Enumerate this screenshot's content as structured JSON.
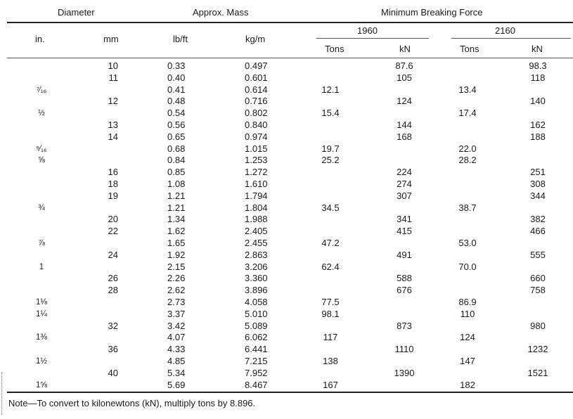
{
  "header": {
    "diameter": "Diameter",
    "mass": "Approx. Mass",
    "force": "Minimum Breaking Force",
    "in": "in.",
    "mm": "mm",
    "lbft": "lb/ft",
    "kgm": "kg/m",
    "y1960": "1960",
    "y2160": "2160",
    "tons1": "Tons",
    "kn1": "kN",
    "tons2": "Tons",
    "kn2": "kN"
  },
  "rows": [
    {
      "in": "",
      "mm": "10",
      "lb": "0.33",
      "kg": "0.497",
      "t60": "",
      "kn60": "87.6",
      "t21": "",
      "kn21": "98.3"
    },
    {
      "in": "",
      "mm": "11",
      "lb": "0.40",
      "kg": "0.601",
      "t60": "",
      "kn60": "105",
      "t21": "",
      "kn21": "118"
    },
    {
      "in": "⁷⁄₁₆",
      "mm": "",
      "lb": "0.41",
      "kg": "0.614",
      "t60": "12.1",
      "kn60": "",
      "t21": "13.4",
      "kn21": ""
    },
    {
      "in": "",
      "mm": "12",
      "lb": "0.48",
      "kg": "0.716",
      "t60": "",
      "kn60": "124",
      "t21": "",
      "kn21": "140"
    },
    {
      "in": "½",
      "mm": "",
      "lb": "0.54",
      "kg": "0.802",
      "t60": "15.4",
      "kn60": "",
      "t21": "17.4",
      "kn21": ""
    },
    {
      "in": "",
      "mm": "13",
      "lb": "0.56",
      "kg": "0.840",
      "t60": "",
      "kn60": "144",
      "t21": "",
      "kn21": "162"
    },
    {
      "in": "",
      "mm": "14",
      "lb": "0.65",
      "kg": "0.974",
      "t60": "",
      "kn60": "168",
      "t21": "",
      "kn21": "188"
    },
    {
      "in": "⁹⁄₁₆",
      "mm": "",
      "lb": "0.68",
      "kg": "1.015",
      "t60": "19.7",
      "kn60": "",
      "t21": "22.0",
      "kn21": ""
    },
    {
      "in": "⅝",
      "mm": "",
      "lb": "0.84",
      "kg": "1.253",
      "t60": "25.2",
      "kn60": "",
      "t21": "28.2",
      "kn21": ""
    },
    {
      "in": "",
      "mm": "16",
      "lb": "0.85",
      "kg": "1.272",
      "t60": "",
      "kn60": "224",
      "t21": "",
      "kn21": "251"
    },
    {
      "in": "",
      "mm": "18",
      "lb": "1.08",
      "kg": "1.610",
      "t60": "",
      "kn60": "274",
      "t21": "",
      "kn21": "308"
    },
    {
      "in": "",
      "mm": "19",
      "lb": "1.21",
      "kg": "1.794",
      "t60": "",
      "kn60": "307",
      "t21": "",
      "kn21": "344"
    },
    {
      "in": "¾",
      "mm": "",
      "lb": "1.21",
      "kg": "1.804",
      "t60": "34.5",
      "kn60": "",
      "t21": "38.7",
      "kn21": ""
    },
    {
      "in": "",
      "mm": "20",
      "lb": "1.34",
      "kg": "1.988",
      "t60": "",
      "kn60": "341",
      "t21": "",
      "kn21": "382"
    },
    {
      "in": "",
      "mm": "22",
      "lb": "1.62",
      "kg": "2.405",
      "t60": "",
      "kn60": "415",
      "t21": "",
      "kn21": "466"
    },
    {
      "in": "⅞",
      "mm": "",
      "lb": "1.65",
      "kg": "2.455",
      "t60": "47.2",
      "kn60": "",
      "t21": "53.0",
      "kn21": ""
    },
    {
      "in": "",
      "mm": "24",
      "lb": "1.92",
      "kg": "2.863",
      "t60": "",
      "kn60": "491",
      "t21": "",
      "kn21": "555"
    },
    {
      "in": "1",
      "mm": "",
      "lb": "2.15",
      "kg": "3.206",
      "t60": "62.4",
      "kn60": "",
      "t21": "70.0",
      "kn21": ""
    },
    {
      "in": "",
      "mm": "26",
      "lb": "2.26",
      "kg": "3.360",
      "t60": "",
      "kn60": "588",
      "t21": "",
      "kn21": "660"
    },
    {
      "in": "",
      "mm": "28",
      "lb": "2.62",
      "kg": "3.896",
      "t60": "",
      "kn60": "676",
      "t21": "",
      "kn21": "758"
    },
    {
      "in": "1⅛",
      "mm": "",
      "lb": "2.73",
      "kg": "4.058",
      "t60": "77.5",
      "kn60": "",
      "t21": "86.9",
      "kn21": ""
    },
    {
      "in": "1¼",
      "mm": "",
      "lb": "3.37",
      "kg": "5.010",
      "t60": "98.1",
      "kn60": "",
      "t21": "110",
      "kn21": ""
    },
    {
      "in": "",
      "mm": "32",
      "lb": "3.42",
      "kg": "5.089",
      "t60": "",
      "kn60": "873",
      "t21": "",
      "kn21": "980"
    },
    {
      "in": "1⅜",
      "mm": "",
      "lb": "4.07",
      "kg": "6.062",
      "t60": "117",
      "kn60": "",
      "t21": "124",
      "kn21": ""
    },
    {
      "in": "",
      "mm": "36",
      "lb": "4.33",
      "kg": "6.441",
      "t60": "",
      "kn60": "1110",
      "t21": "",
      "kn21": "1232"
    },
    {
      "in": "1½",
      "mm": "",
      "lb": "4.85",
      "kg": "7.215",
      "t60": "138",
      "kn60": "",
      "t21": "147",
      "kn21": ""
    },
    {
      "in": "",
      "mm": "40",
      "lb": "5.34",
      "kg": "7.952",
      "t60": "",
      "kn60": "1390",
      "t21": "",
      "kn21": "1521"
    },
    {
      "in": "1⅝",
      "mm": "",
      "lb": "5.69",
      "kg": "8.467",
      "t60": "167",
      "kn60": "",
      "t21": "182",
      "kn21": ""
    }
  ],
  "note": "Note—To convert to kilonewtons (kN), multiply tons by 8.896."
}
